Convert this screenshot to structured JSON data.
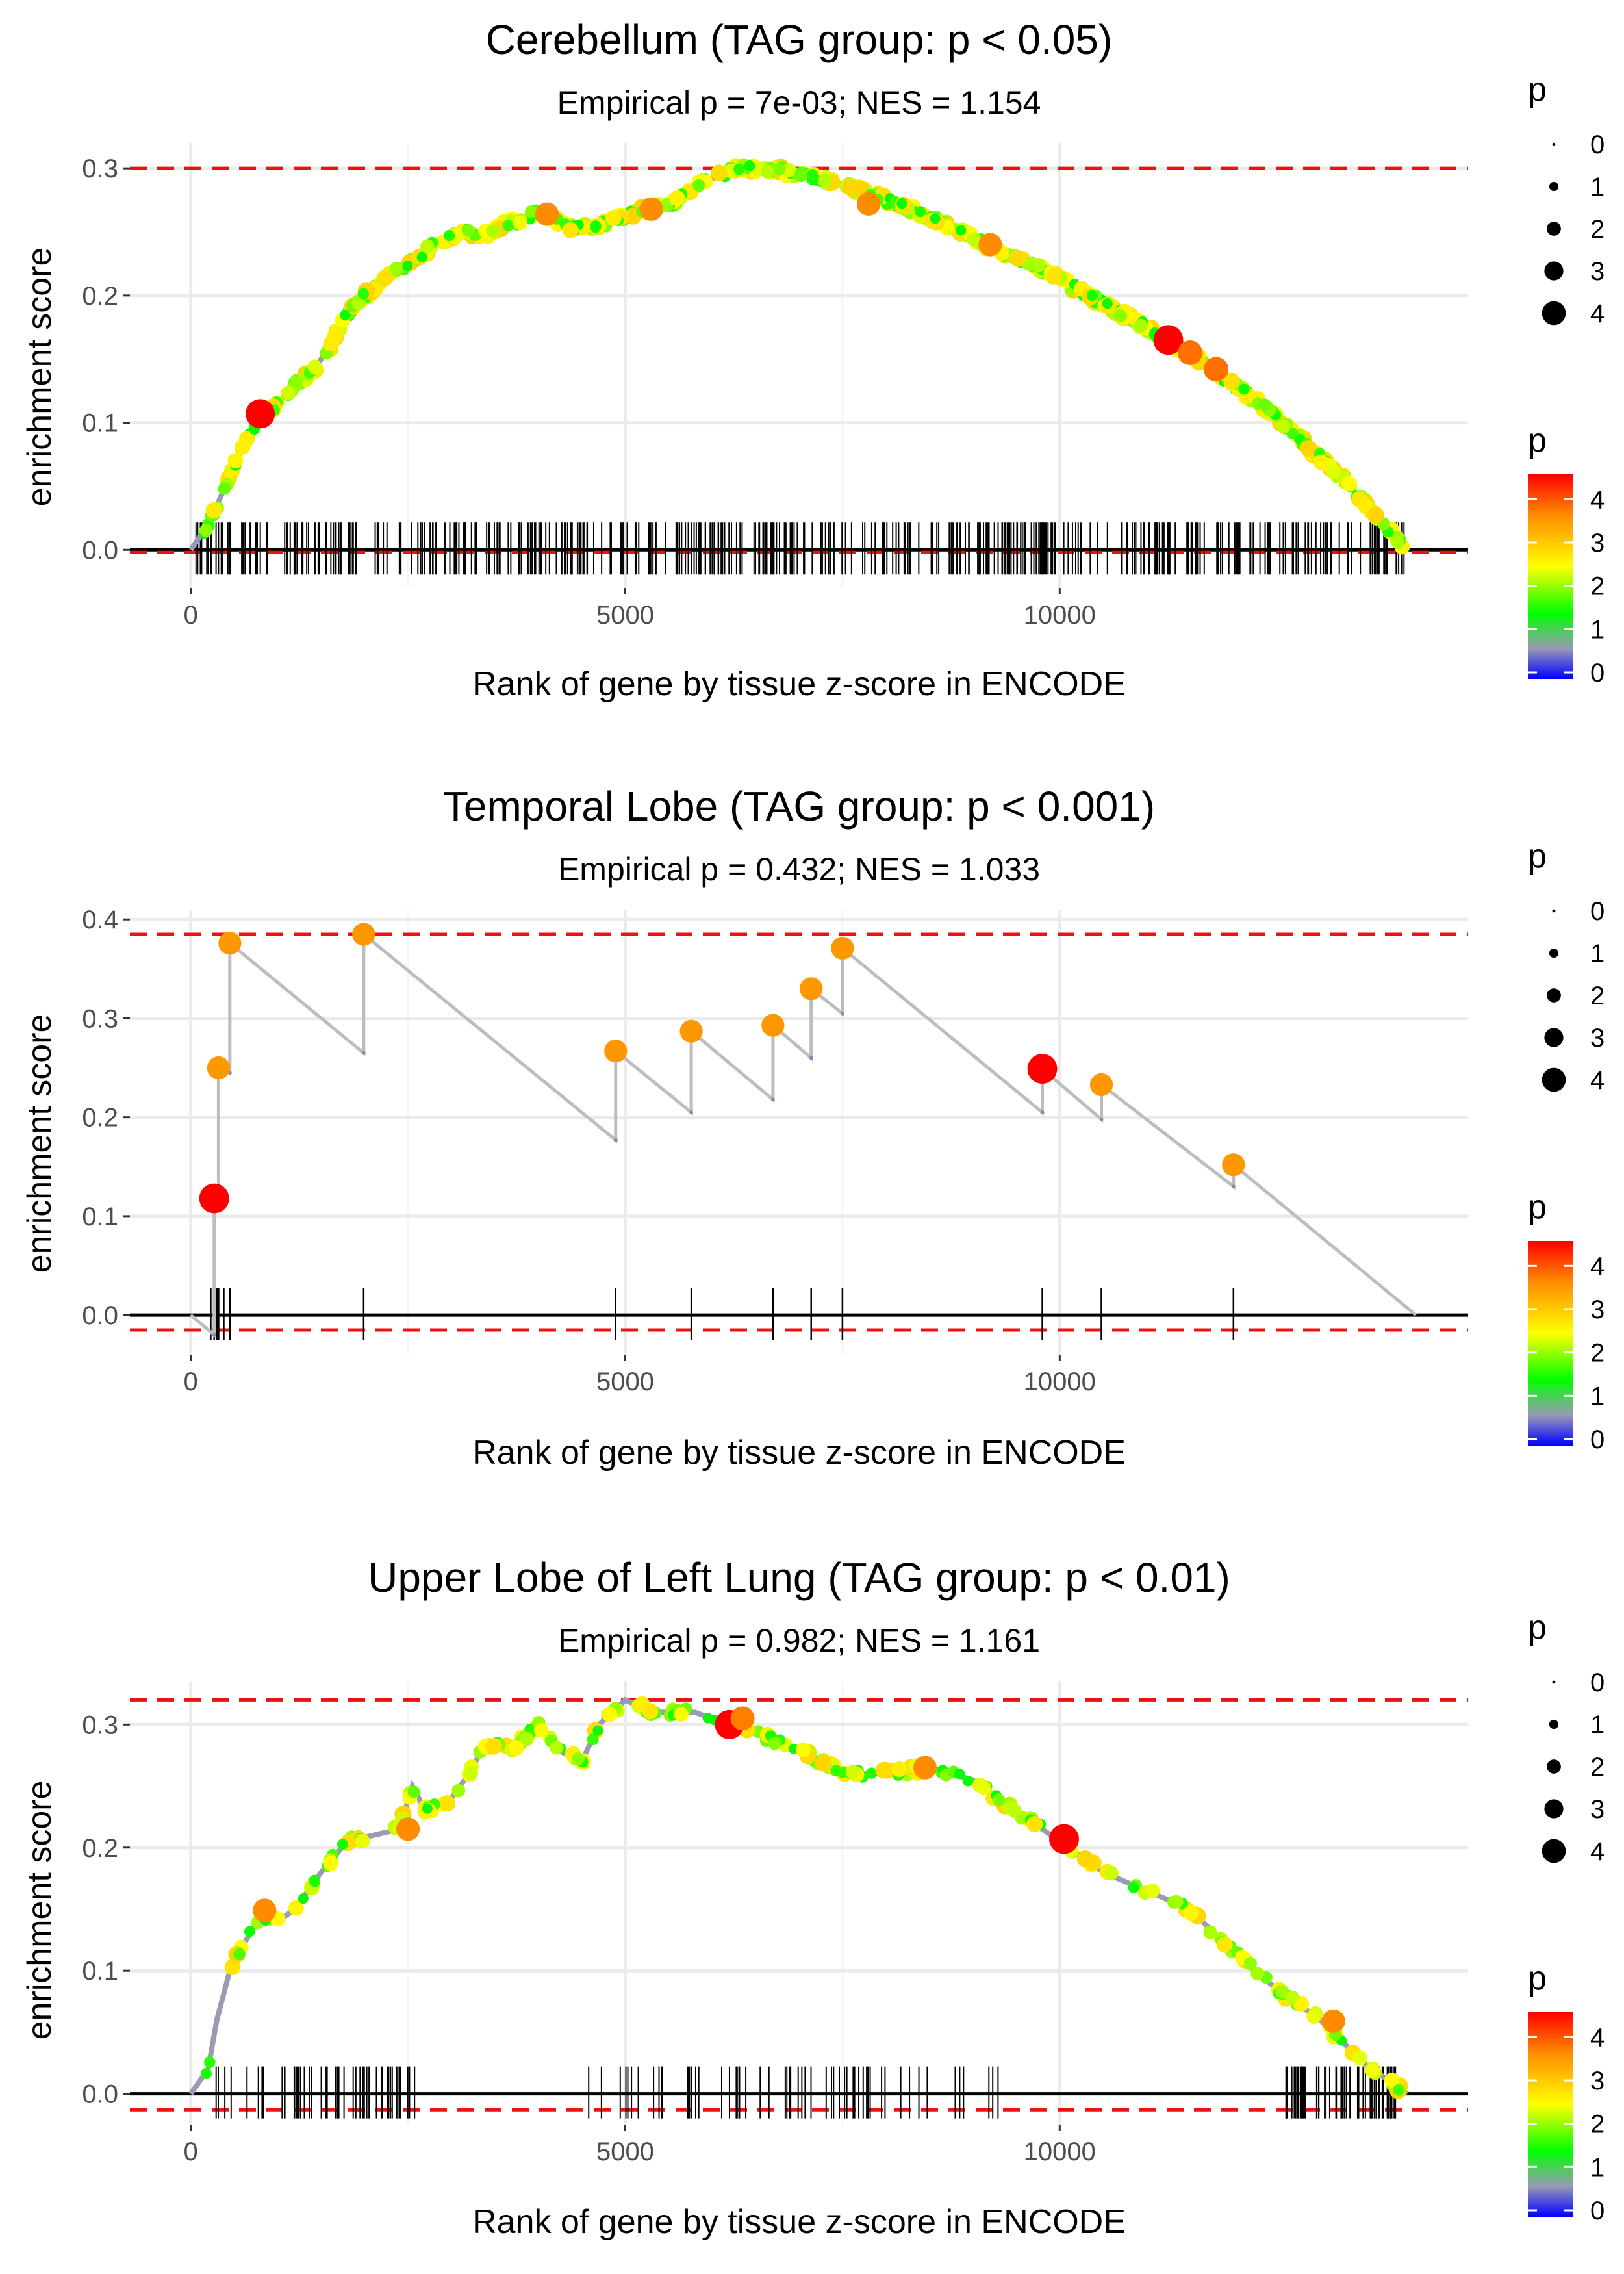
{
  "chart_data": [
    {
      "type": "scatter",
      "title": "Cerebellum (TAG group: p < 0.05)",
      "subtitle": "Empirical p = 7e-03; NES = 1.154",
      "xlabel": "Rank of gene by tissue z-score in ENCODE",
      "ylabel": "enrichment score",
      "xlim": [
        -700,
        14700
      ],
      "ylim": [
        -0.03,
        0.32
      ],
      "x_ticks": [
        0,
        5000,
        10000
      ],
      "x_tick_labels": [
        "0",
        "5000",
        "10000"
      ],
      "y_ticks": [
        0.0,
        0.1,
        0.2,
        0.3
      ],
      "y_tick_labels": [
        "0.0",
        "0.1",
        "0.2",
        "0.3"
      ],
      "max_es": 0.3,
      "min_es": -0.002,
      "n_genes": 14000,
      "profile": [
        [
          0,
          0
        ],
        [
          200,
          0.02
        ],
        [
          400,
          0.05
        ],
        [
          600,
          0.08
        ],
        [
          800,
          0.105
        ],
        [
          1000,
          0.115
        ],
        [
          1200,
          0.13
        ],
        [
          1400,
          0.14
        ],
        [
          1600,
          0.16
        ],
        [
          1800,
          0.185
        ],
        [
          2000,
          0.2
        ],
        [
          2200,
          0.21
        ],
        [
          2400,
          0.22
        ],
        [
          2600,
          0.23
        ],
        [
          2800,
          0.24
        ],
        [
          3000,
          0.245
        ],
        [
          3200,
          0.25
        ],
        [
          3400,
          0.248
        ],
        [
          3600,
          0.255
        ],
        [
          3800,
          0.26
        ],
        [
          4000,
          0.265
        ],
        [
          4200,
          0.258
        ],
        [
          4400,
          0.252
        ],
        [
          4600,
          0.255
        ],
        [
          4800,
          0.258
        ],
        [
          5000,
          0.262
        ],
        [
          5200,
          0.268
        ],
        [
          5500,
          0.27
        ],
        [
          5800,
          0.285
        ],
        [
          6000,
          0.292
        ],
        [
          6300,
          0.3
        ],
        [
          6600,
          0.3
        ],
        [
          7000,
          0.296
        ],
        [
          7400,
          0.29
        ],
        [
          7800,
          0.28
        ],
        [
          8200,
          0.27
        ],
        [
          8600,
          0.26
        ],
        [
          9000,
          0.245
        ],
        [
          9400,
          0.232
        ],
        [
          9800,
          0.22
        ],
        [
          10200,
          0.205
        ],
        [
          10600,
          0.19
        ],
        [
          11000,
          0.175
        ],
        [
          11200,
          0.165
        ],
        [
          11600,
          0.15
        ],
        [
          12000,
          0.13
        ],
        [
          12400,
          0.11
        ],
        [
          12800,
          0.085
        ],
        [
          13200,
          0.06
        ],
        [
          13600,
          0.03
        ],
        [
          14000,
          0
        ]
      ],
      "highlight_points": [
        {
          "x": 800,
          "y": 0.107,
          "p": 4.2
        },
        {
          "x": 4100,
          "y": 0.264,
          "p": 3.2
        },
        {
          "x": 5300,
          "y": 0.268,
          "p": 3.2
        },
        {
          "x": 7800,
          "y": 0.272,
          "p": 3.2
        },
        {
          "x": 9200,
          "y": 0.24,
          "p": 3.2
        },
        {
          "x": 11250,
          "y": 0.165,
          "p": 4.3
        },
        {
          "x": 11500,
          "y": 0.155,
          "p": 3.4
        },
        {
          "x": 11800,
          "y": 0.142,
          "p": 3.4
        }
      ],
      "rug_mode": "dense",
      "rug_x_range": [
        0,
        14000
      ]
    },
    {
      "type": "scatter",
      "title": "Temporal Lobe (TAG group: p < 0.001)",
      "subtitle": "Empirical p = 0.432; NES = 1.033",
      "xlabel": "Rank of gene by tissue z-score in ENCODE",
      "ylabel": "enrichment score",
      "xlim": [
        -700,
        14700
      ],
      "ylim": [
        -0.04,
        0.41
      ],
      "x_ticks": [
        0,
        5000,
        10000
      ],
      "x_tick_labels": [
        "0",
        "5000",
        "10000"
      ],
      "y_ticks": [
        0.0,
        0.1,
        0.2,
        0.3,
        0.4
      ],
      "y_tick_labels": [
        "0.0",
        "0.1",
        "0.2",
        "0.3",
        "0.4"
      ],
      "max_es": 0.385,
      "min_es": -0.015,
      "n_genes": 14000,
      "hits": [
        {
          "x": 270,
          "low": -0.02,
          "y": 0.118,
          "p": 4.3
        },
        {
          "x": 320,
          "low": 0.11,
          "y": 0.25,
          "p": 3.1
        },
        {
          "x": 450,
          "low": 0.245,
          "y": 0.376,
          "p": 3.1
        },
        {
          "x": 1990,
          "low": 0.265,
          "y": 0.385,
          "p": 3.1
        },
        {
          "x": 4890,
          "low": 0.177,
          "y": 0.267,
          "p": 3.1
        },
        {
          "x": 5760,
          "low": 0.205,
          "y": 0.287,
          "p": 3.1
        },
        {
          "x": 6700,
          "low": 0.218,
          "y": 0.293,
          "p": 3.1
        },
        {
          "x": 7140,
          "low": 0.26,
          "y": 0.33,
          "p": 3.1
        },
        {
          "x": 7500,
          "low": 0.305,
          "y": 0.371,
          "p": 3.1
        },
        {
          "x": 9800,
          "low": 0.205,
          "y": 0.249,
          "p": 4.3
        },
        {
          "x": 10480,
          "low": 0.198,
          "y": 0.233,
          "p": 3.1
        },
        {
          "x": 12000,
          "low": 0.13,
          "y": 0.152,
          "p": 3.1
        }
      ],
      "end_x": 14100
    },
    {
      "type": "scatter",
      "title": "Upper Lobe of Left Lung (TAG group: p < 0.01)",
      "subtitle": "Empirical p = 0.982; NES = 1.161",
      "xlabel": "Rank of gene by tissue z-score in ENCODE",
      "ylabel": "enrichment score",
      "xlim": [
        -700,
        14700
      ],
      "ylim": [
        -0.025,
        0.335
      ],
      "x_ticks": [
        0,
        5000,
        10000
      ],
      "x_tick_labels": [
        "0",
        "5000",
        "10000"
      ],
      "y_ticks": [
        0.0,
        0.1,
        0.2,
        0.3
      ],
      "y_tick_labels": [
        "0.0",
        "0.1",
        "0.2",
        "0.3"
      ],
      "max_es": 0.32,
      "min_es": -0.013,
      "n_genes": 14000,
      "profile": [
        [
          0,
          0
        ],
        [
          200,
          0.02
        ],
        [
          300,
          0.06
        ],
        [
          450,
          0.1
        ],
        [
          600,
          0.12
        ],
        [
          800,
          0.145
        ],
        [
          1000,
          0.14
        ],
        [
          1200,
          0.15
        ],
        [
          1500,
          0.18
        ],
        [
          1800,
          0.205
        ],
        [
          2100,
          0.21
        ],
        [
          2400,
          0.215
        ],
        [
          2550,
          0.25
        ],
        [
          2700,
          0.23
        ],
        [
          3000,
          0.24
        ],
        [
          3200,
          0.26
        ],
        [
          3400,
          0.285
        ],
        [
          3700,
          0.28
        ],
        [
          4000,
          0.3
        ],
        [
          4200,
          0.28
        ],
        [
          4500,
          0.27
        ],
        [
          4700,
          0.3
        ],
        [
          5000,
          0.32
        ],
        [
          5300,
          0.31
        ],
        [
          5800,
          0.31
        ],
        [
          6200,
          0.3
        ],
        [
          6600,
          0.29
        ],
        [
          7000,
          0.28
        ],
        [
          7500,
          0.26
        ],
        [
          8000,
          0.26
        ],
        [
          8500,
          0.265
        ],
        [
          9000,
          0.255
        ],
        [
          9400,
          0.235
        ],
        [
          10000,
          0.205
        ],
        [
          10500,
          0.18
        ],
        [
          11000,
          0.165
        ],
        [
          11500,
          0.15
        ],
        [
          12000,
          0.115
        ],
        [
          12500,
          0.085
        ],
        [
          13000,
          0.06
        ],
        [
          13500,
          0.025
        ],
        [
          14000,
          0
        ]
      ],
      "highlight_points": [
        {
          "x": 850,
          "y": 0.149,
          "p": 3.2
        },
        {
          "x": 2500,
          "y": 0.215,
          "p": 3.2
        },
        {
          "x": 6200,
          "y": 0.3,
          "p": 4.2
        },
        {
          "x": 6350,
          "y": 0.305,
          "p": 3.3
        },
        {
          "x": 8450,
          "y": 0.265,
          "p": 3.2
        },
        {
          "x": 10050,
          "y": 0.207,
          "p": 4.3
        },
        {
          "x": 13150,
          "y": 0.059,
          "p": 3.2
        }
      ],
      "rug_mode": "sparse",
      "rug_x_range": [
        0,
        14000
      ]
    }
  ],
  "legend": {
    "size_title": "p",
    "size_labels": [
      "0",
      "1",
      "2",
      "3",
      "4"
    ],
    "color_title": "p",
    "color_labels": [
      "0",
      "1",
      "2",
      "3",
      "4"
    ]
  },
  "colors": {
    "ref_line": "#ee1111",
    "profile_line": "#bdbdbd",
    "grid": "#ebebeb",
    "gradient": [
      "#0000ff",
      "#9a9ab4",
      "#00ff00",
      "#ffff00",
      "#ff7f00",
      "#ff0000"
    ]
  }
}
